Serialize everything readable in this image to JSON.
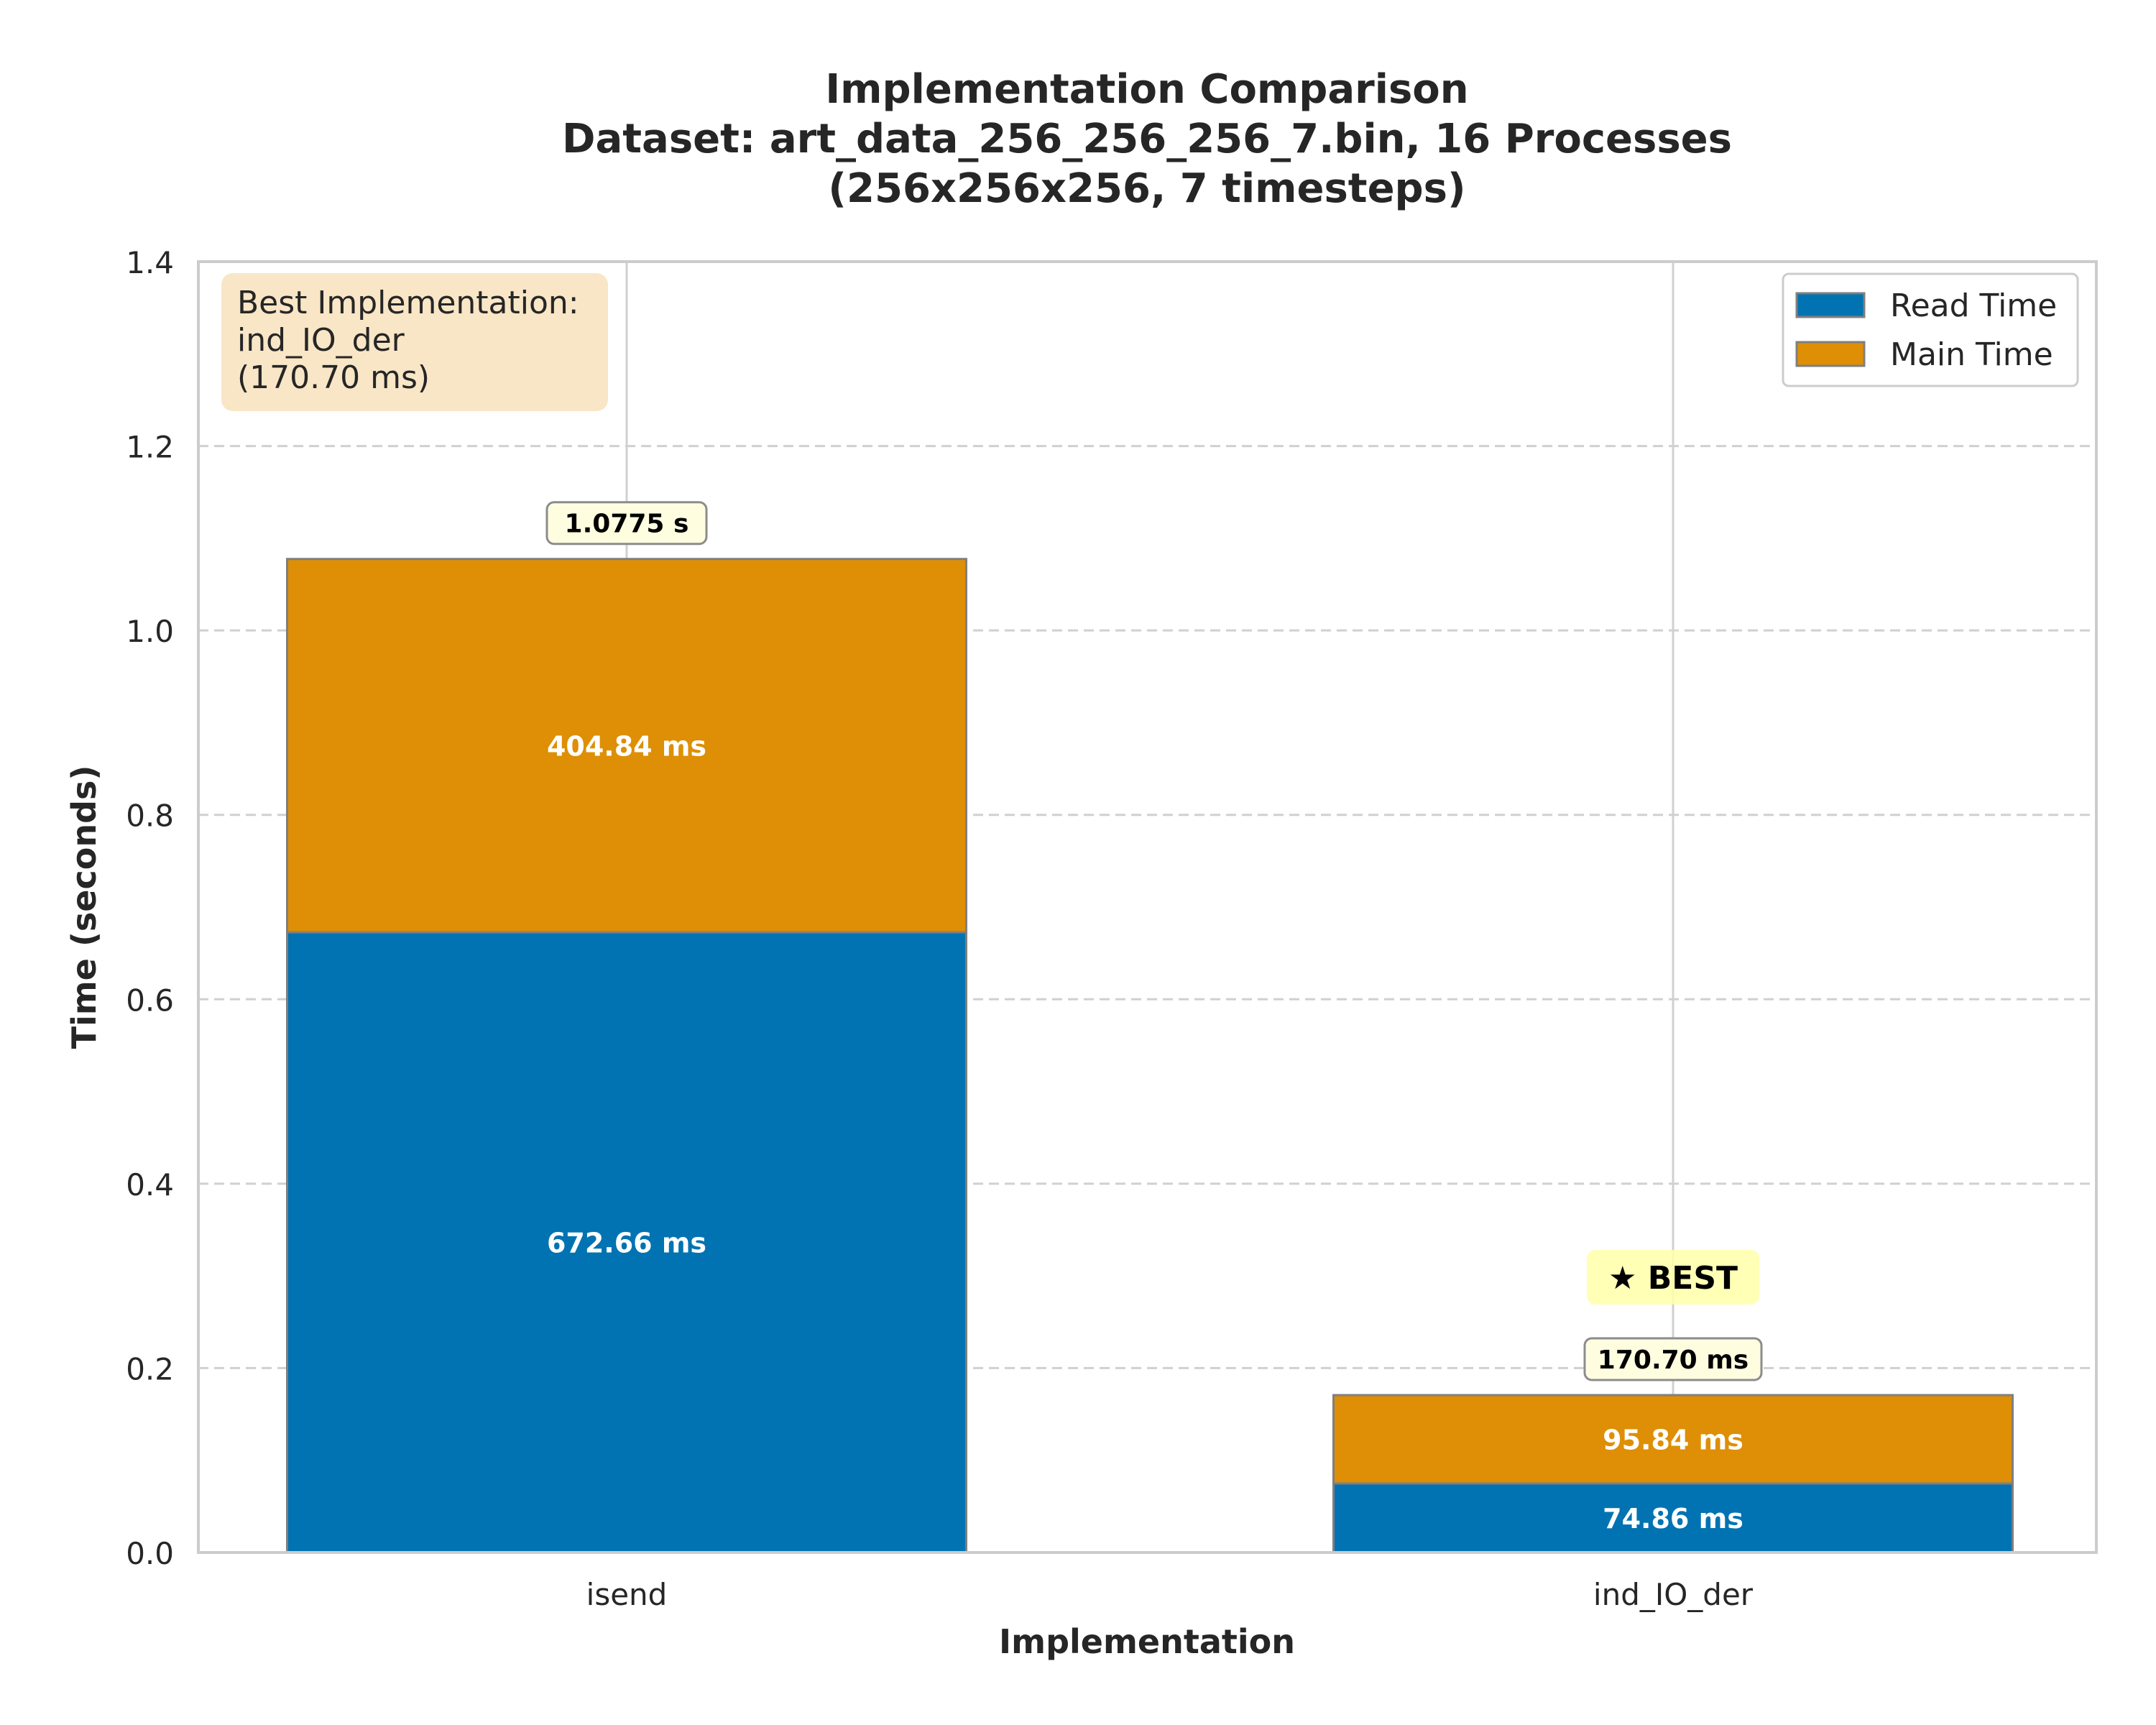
{
  "chart_data": {
    "type": "bar",
    "stacked": true,
    "title_lines": [
      "Implementation Comparison",
      "Dataset: art_data_256_256_256_7.bin, 16 Processes",
      "(256x256x256, 7 timesteps)"
    ],
    "xlabel": "Implementation",
    "ylabel": "Time (seconds)",
    "ylim": [
      0,
      1.4
    ],
    "yticks": [
      "0.0",
      "0.2",
      "0.4",
      "0.6",
      "0.8",
      "1.0",
      "1.2",
      "1.4"
    ],
    "grid": "horizontal dashed",
    "categories": [
      "isend",
      "ind_IO_der"
    ],
    "series": [
      {
        "name": "Read Time",
        "color": "#0173b2",
        "values": [
          0.67266,
          0.07486
        ],
        "labels": [
          "672.66 ms",
          "74.86 ms"
        ]
      },
      {
        "name": "Main Time",
        "color": "#de8f05",
        "values": [
          0.40484,
          0.09584
        ],
        "labels": [
          "404.84 ms",
          "95.84 ms"
        ]
      }
    ],
    "totals": [
      1.0775,
      0.1707
    ],
    "total_labels": [
      "1.0775 s",
      "170.70 ms"
    ],
    "best_marker": {
      "category": "ind_IO_der",
      "text": "★ BEST"
    },
    "info_box": {
      "lines": [
        "Best Implementation:",
        "ind_IO_der",
        "(170.70 ms)"
      ]
    },
    "legend_position": "top-right"
  }
}
